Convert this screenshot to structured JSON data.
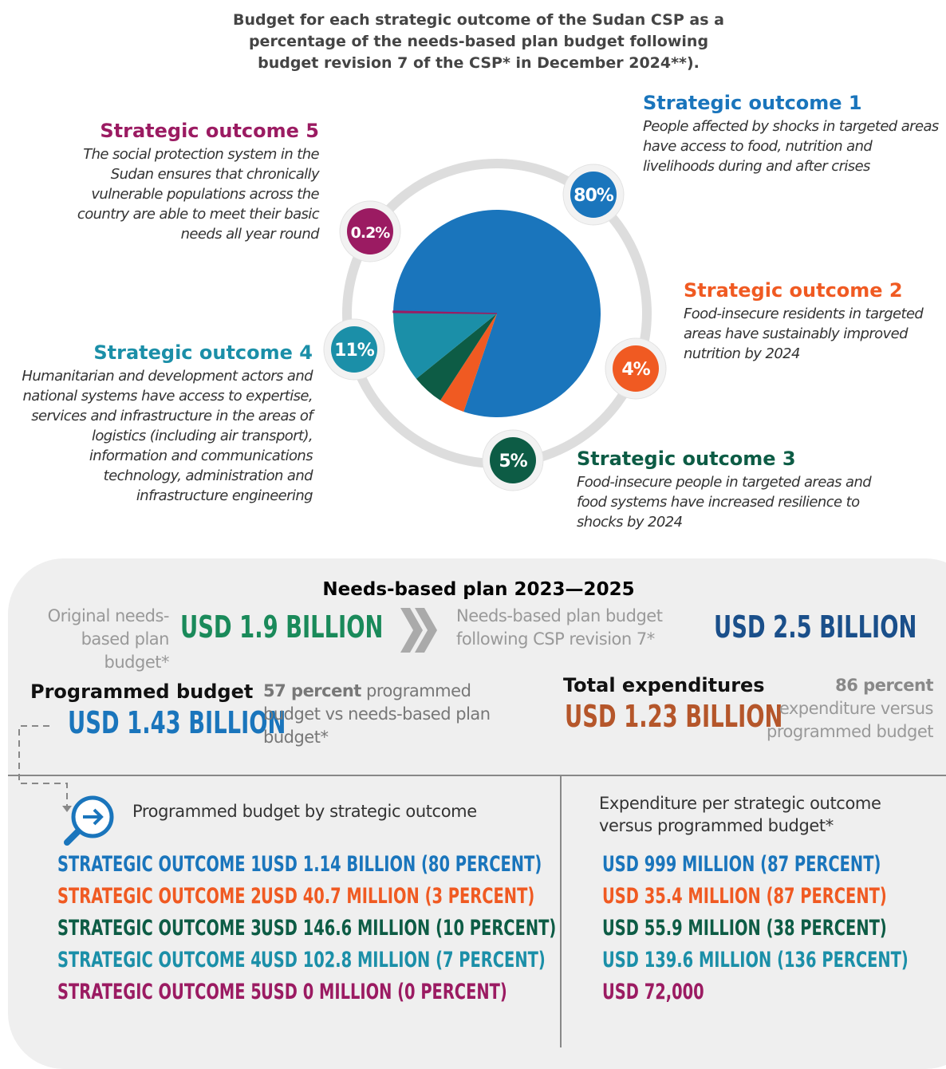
{
  "title": "Budget for each strategic outcome of the Sudan CSP as a percentage of  the needs-based plan budget following budget revision 7 of the CSP* in December 2024**).",
  "chart_data": {
    "type": "pie",
    "categories": [
      "Strategic outcome 1",
      "Strategic outcome 2",
      "Strategic outcome 3",
      "Strategic outcome 4",
      "Strategic outcome 5"
    ],
    "values": [
      80,
      4,
      5,
      11,
      0.2
    ],
    "value_labels": [
      "80%",
      "4%",
      "5%",
      "11%",
      "0.2%"
    ],
    "colors": [
      "#1a75bc",
      "#f05a22",
      "#0d5c45",
      "#1b8fa8",
      "#9b1b62"
    ]
  },
  "descriptions": [
    "People affected by shocks in targeted areas have access to food, nutrition and livelihoods during and after crises",
    "Food-insecure residents in targeted areas have sustainably improved nutrition by 2024",
    "Food-insecure people in targeted areas and food systems have increased resilience to shocks by 2024",
    "Humanitarian and development actors and national systems have access to expertise, services and infrastructure in the areas of logistics (including air transport), information and communications technology, administration and infrastructure engineering",
    "The social protection system in the Sudan ensures that chronically vulnerable populations across the country are  able to meet their basic needs all year round"
  ],
  "needs_based": {
    "heading": "Needs-based plan 2023—2025",
    "original_label": "Original needs-based plan budget*",
    "original_value": "USD 1.9 BILLION",
    "revised_label": "Needs-based plan budget following CSP revision 7*",
    "revised_value": "USD 2.5 BILLION"
  },
  "programmed": {
    "heading": "Programmed budget",
    "value": "USD 1.43 BILLION",
    "note_strong": "57 percent",
    "note": "programmed budget vs needs-based plan budget*"
  },
  "expenditures": {
    "heading": "Total expenditures",
    "value": "USD 1.23 BILLION",
    "note_strong": "86 percent",
    "note": "expenditure versus programmed budget"
  },
  "by_outcome": {
    "heading": "Programmed budget by strategic outcome",
    "labels": [
      "STRATEGIC OUTCOME 1",
      "STRATEGIC OUTCOME 2",
      "STRATEGIC OUTCOME 3",
      "STRATEGIC OUTCOME 4",
      "STRATEGIC OUTCOME 5"
    ],
    "amounts": [
      "USD 1.14 BILLION (80 PERCENT)",
      "USD 40.7 MILLION (3 PERCENT)",
      "USD 146.6 MILLION (10 PERCENT)",
      "USD 102.8 MILLION (7 PERCENT)",
      "USD 0 MILLION (0 PERCENT)"
    ]
  },
  "expenditure_per": {
    "heading": "Expenditure per strategic outcome versus programmed budget*",
    "amounts": [
      "USD 999 MILLION (87 PERCENT)",
      "USD 35.4 MILLION (87 PERCENT)",
      "USD 55.9 MILLION (38 PERCENT)",
      "USD 139.6 MILLION (136 PERCENT)",
      "USD 72,000"
    ]
  }
}
